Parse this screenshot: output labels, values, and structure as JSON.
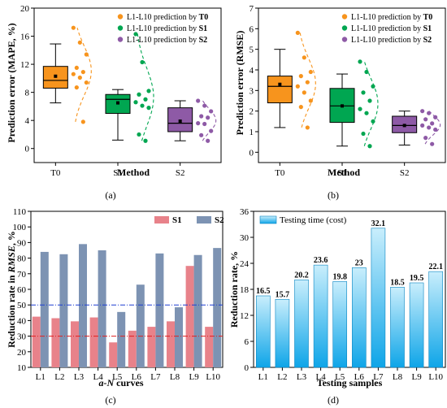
{
  "chart_data": [
    {
      "id": "a",
      "panel_label": "(a)",
      "type": "box",
      "ylabel": "Prediction error (MAPE, %)",
      "xlabel": "Method",
      "ylim": [
        -2,
        20
      ],
      "yticks": [
        0,
        4,
        8,
        12,
        16,
        20
      ],
      "categories": [
        "T0",
        "S1",
        "S2"
      ],
      "colors": [
        "#f7941d",
        "#00a651",
        "#8e5aa6"
      ],
      "legend": [
        {
          "prefix": "L1-L10 prediction by ",
          "bold": "T0"
        },
        {
          "prefix": "L1-L10 prediction by ",
          "bold": "S1"
        },
        {
          "prefix": "L1-L10 prediction by ",
          "bold": "S2"
        }
      ],
      "boxes": [
        {
          "min": 6.5,
          "q1": 8.6,
          "median": 9.7,
          "mean": 10.3,
          "q3": 11.7,
          "max": 14.9
        },
        {
          "min": 1.2,
          "q1": 5.0,
          "median": 7.0,
          "mean": 6.5,
          "q3": 7.7,
          "max": 8.4
        },
        {
          "min": 1.1,
          "q1": 2.4,
          "median": 3.6,
          "mean": 3.9,
          "q3": 5.8,
          "max": 6.8
        }
      ],
      "points": [
        [
          17.2,
          15.1,
          13.4,
          11.5,
          10.9,
          10.6,
          10.1,
          9.4,
          8.7,
          3.8
        ],
        [
          16.3,
          12.3,
          8.2,
          7.7,
          7.0,
          6.6,
          6.1,
          5.8,
          2.0,
          1.1
        ],
        [
          6.8,
          6.1,
          5.3,
          4.6,
          4.4,
          3.6,
          3.5,
          2.5,
          1.9,
          1.1
        ]
      ]
    },
    {
      "id": "b",
      "panel_label": "(b)",
      "type": "box",
      "ylabel": "Prediction error (RMSE)",
      "xlabel": "Method",
      "ylim": [
        -0.5,
        7
      ],
      "yticks": [
        0,
        1,
        2,
        3,
        4,
        5,
        6,
        7
      ],
      "categories": [
        "T0",
        "S1",
        "S2"
      ],
      "colors": [
        "#f7941d",
        "#00a651",
        "#8e5aa6"
      ],
      "legend": [
        {
          "prefix": "L1-L10 prediction by ",
          "bold": "T0"
        },
        {
          "prefix": "L1-L10 prediction by ",
          "bold": "S1"
        },
        {
          "prefix": "L1-L10 prediction by ",
          "bold": "S2"
        }
      ],
      "boxes": [
        {
          "min": 1.2,
          "q1": 2.4,
          "median": 3.2,
          "mean": 3.3,
          "q3": 3.7,
          "max": 5.0
        },
        {
          "min": 0.3,
          "q1": 1.45,
          "median": 2.25,
          "mean": 2.25,
          "q3": 3.1,
          "max": 3.8
        },
        {
          "min": 0.35,
          "q1": 0.95,
          "median": 1.3,
          "mean": 1.3,
          "q3": 1.75,
          "max": 2.0
        }
      ],
      "points": [
        [
          5.8,
          4.6,
          3.9,
          3.7,
          3.4,
          3.2,
          2.9,
          2.5,
          2.2,
          1.2
        ],
        [
          4.4,
          3.9,
          3.2,
          2.9,
          2.5,
          2.1,
          1.9,
          1.5,
          0.9,
          0.3
        ],
        [
          2.0,
          1.9,
          1.7,
          1.6,
          1.4,
          1.3,
          1.2,
          1.1,
          0.7,
          0.4
        ]
      ]
    },
    {
      "id": "c",
      "panel_label": "(c)",
      "type": "bar",
      "ylabel_plain": "Reduction rate in ",
      "ylabel_italic": "RMSE",
      "ylabel_tail": ", %",
      "xlabel_italic": "a-N",
      "xlabel_tail": " curves",
      "ylim": [
        10,
        110
      ],
      "yticks": [
        10,
        20,
        30,
        40,
        50,
        60,
        70,
        80,
        90,
        100,
        110
      ],
      "categories": [
        "L1",
        "L2",
        "L3",
        "L4",
        "L5",
        "L6",
        "L7",
        "L8",
        "L9",
        "L10"
      ],
      "series": [
        {
          "name": "S1",
          "color": "#e8828a",
          "values": [
            42.5,
            41.5,
            39.5,
            42.0,
            26.0,
            33.5,
            36.0,
            39.5,
            75.0,
            36.0
          ]
        },
        {
          "name": "S2",
          "color": "#7d93b3",
          "values": [
            84.0,
            82.5,
            89.0,
            85.0,
            45.5,
            63.0,
            83.0,
            48.5,
            82.0,
            86.5
          ]
        }
      ],
      "reference_lines": [
        {
          "value": 50,
          "color": "#1f3fd1"
        },
        {
          "value": 30,
          "color": "#e01f1f"
        }
      ]
    },
    {
      "id": "d",
      "panel_label": "(d)",
      "type": "bar",
      "ylabel": "Reduction rate, %",
      "xlabel": "Testing samples",
      "ylim": [
        0,
        36
      ],
      "yticks": [
        0,
        6,
        12,
        18,
        24,
        30,
        36
      ],
      "categories": [
        "L1",
        "L2",
        "L3",
        "L4",
        "L5",
        "L6",
        "L7",
        "L8",
        "L9",
        "L10"
      ],
      "values": [
        16.5,
        15.7,
        20.2,
        23.6,
        19.8,
        23,
        32.1,
        18.5,
        19.5,
        22.1
      ],
      "value_labels": [
        "16.5",
        "15.7",
        "20.2",
        "23.6",
        "19.8",
        "23",
        "32.1",
        "18.5",
        "19.5",
        "22.1"
      ],
      "legend": [
        "Testing time (cost)"
      ],
      "color_top": "#c9eefc",
      "color_bottom": "#0ea5e8"
    }
  ]
}
